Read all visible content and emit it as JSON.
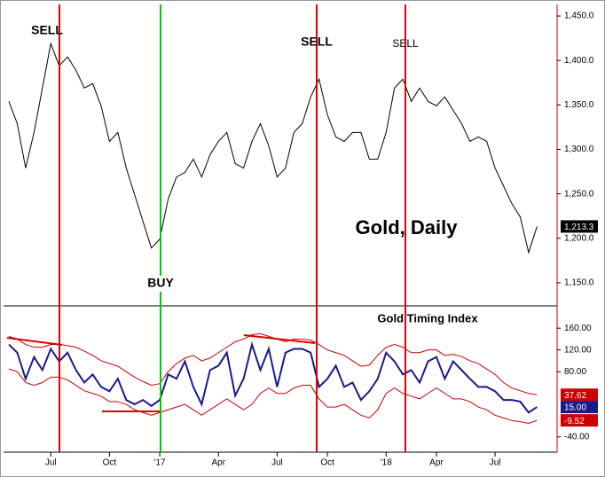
{
  "chart_data": [
    {
      "type": "line",
      "title": "Gold, Daily",
      "categories": [
        null,
        null,
        null,
        null,
        null,
        "Jul",
        null,
        null,
        null,
        null,
        null,
        null,
        "Oct",
        null,
        null,
        null,
        null,
        null,
        "'17",
        null,
        null,
        null,
        null,
        null,
        null,
        "Apr",
        null,
        null,
        null,
        null,
        null,
        null,
        "Jul",
        null,
        null,
        null,
        null,
        null,
        "Oct",
        null,
        null,
        null,
        null,
        null,
        null,
        "'18",
        null,
        null,
        null,
        null,
        null,
        "Apr",
        null,
        null,
        null,
        null,
        null,
        null,
        "Jul",
        null,
        null,
        null,
        null,
        null
      ],
      "series": [
        {
          "color": "#000000",
          "values": [
            1354,
            1329,
            1279,
            1319,
            1369,
            1419,
            1394,
            1404,
            1389,
            1369,
            1374,
            1349,
            1309,
            1319,
            1279,
            1249,
            1219,
            1189,
            1199,
            1244,
            1269,
            1274,
            1289,
            1269,
            1294,
            1309,
            1319,
            1284,
            1279,
            1309,
            1329,
            1304,
            1269,
            1279,
            1319,
            1329,
            1359,
            1379,
            1339,
            1314,
            1309,
            1319,
            1319,
            1289,
            1289,
            1319,
            1369,
            1379,
            1354,
            1369,
            1354,
            1349,
            1359,
            1344,
            1329,
            1309,
            1314,
            1309,
            1279,
            1259,
            1239,
            1224,
            1184,
            1213.3
          ],
          "last_label": {
            "value": 1213.3,
            "label": "1,213.3"
          }
        }
      ],
      "ylim": [
        1124,
        1463
      ],
      "yticks": [
        {
          "value": 1150,
          "label": "1,150.0"
        },
        {
          "value": 1200,
          "label": "1,200.0"
        },
        {
          "value": 1250,
          "label": "1,250.0"
        },
        {
          "value": 1300,
          "label": "1,300.0"
        },
        {
          "value": 1350,
          "label": "1,350.0"
        },
        {
          "value": 1400,
          "label": "1,400.0"
        },
        {
          "value": 1450,
          "label": "1,450.0"
        }
      ],
      "annotations": [
        {
          "text": "SELL",
          "color": "#e00000"
        },
        {
          "text": "BUY",
          "color": "#00cc00"
        },
        {
          "text": "SELL",
          "color": "#e00000"
        },
        {
          "text": "SELL",
          "color": "#e00000"
        }
      ]
    },
    {
      "type": "line",
      "title": "Gold Timing Index",
      "series": [
        {
          "color": "#1a1a8c",
          "values": [
            130,
            115,
            67,
            107,
            83,
            122,
            99,
            115,
            83,
            60,
            75,
            52,
            44,
            67,
            28,
            20,
            28,
            17,
            28,
            75,
            67,
            99,
            52,
            20,
            83,
            91,
            115,
            36,
            67,
            130,
            83,
            122,
            52,
            115,
            122,
            122,
            115,
            52,
            67,
            91,
            52,
            60,
            28,
            44,
            67,
            115,
            99,
            75,
            83,
            60,
            99,
            107,
            67,
            99,
            83,
            67,
            52,
            52,
            44,
            28,
            28,
            25,
            5,
            15
          ],
          "last_label": {
            "value": 15,
            "label": "15.00"
          }
        },
        {
          "color": "#cc0000",
          "values": [
            145,
            140,
            130,
            125,
            125,
            130,
            130,
            128,
            125,
            118,
            110,
            100,
            95,
            90,
            80,
            70,
            62,
            55,
            58,
            80,
            95,
            105,
            110,
            100,
            105,
            115,
            125,
            135,
            140,
            148,
            150,
            145,
            140,
            135,
            140,
            140,
            138,
            130,
            120,
            115,
            110,
            100,
            90,
            92,
            110,
            125,
            130,
            125,
            115,
            115,
            120,
            120,
            110,
            112,
            108,
            100,
            95,
            85,
            75,
            60,
            50,
            45,
            40,
            37.62
          ],
          "last_label": {
            "value": 37.62,
            "label": "37.62"
          }
        },
        {
          "color": "#cc0000",
          "values": [
            85,
            80,
            60,
            55,
            60,
            70,
            70,
            65,
            55,
            45,
            40,
            35,
            25,
            25,
            20,
            10,
            5,
            0,
            5,
            10,
            15,
            20,
            10,
            0,
            10,
            20,
            30,
            20,
            10,
            20,
            40,
            50,
            40,
            40,
            50,
            55,
            55,
            30,
            15,
            15,
            20,
            10,
            0,
            -5,
            10,
            40,
            50,
            40,
            35,
            30,
            40,
            50,
            40,
            30,
            30,
            25,
            15,
            10,
            0,
            -5,
            -10,
            -12,
            -15,
            -9.52
          ],
          "last_label": {
            "value": -9.52,
            "label": "-9.52"
          }
        }
      ],
      "ylim": [
        -68,
        201
      ],
      "yticks": [
        {
          "value": 160,
          "label": "160.00"
        },
        {
          "value": 120,
          "label": "120.00"
        },
        {
          "value": 80,
          "label": "80.00"
        },
        {
          "value": -40,
          "label": "-40.00"
        }
      ]
    }
  ]
}
